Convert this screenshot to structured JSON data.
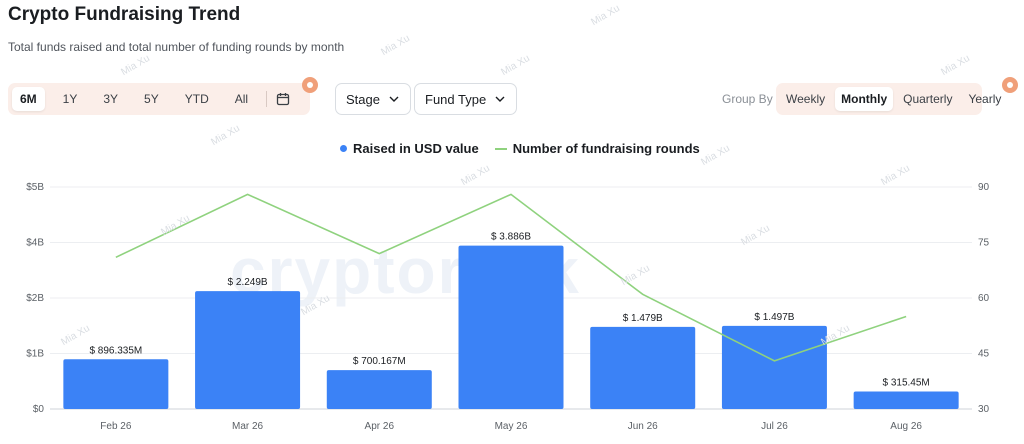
{
  "header": {
    "title": "Crypto Fundraising Trend",
    "subtitle": "Total funds raised and total number of funding rounds by month"
  },
  "range": {
    "options": [
      "6M",
      "1Y",
      "3Y",
      "5Y",
      "YTD",
      "All"
    ],
    "active": "6M",
    "calendar_icon": "calendar-icon"
  },
  "filters": {
    "stage_label": "Stage",
    "fund_type_label": "Fund Type"
  },
  "group_by": {
    "label": "Group By",
    "options": [
      "Weekly",
      "Monthly",
      "Quarterly",
      "Yearly"
    ],
    "active": "Monthly"
  },
  "watermark": {
    "big_text": "cryptorank",
    "small_text": "Mia Xu"
  },
  "colors": {
    "bar": "#3b82f6",
    "line": "#8fd27e",
    "accent_badge": "#f0a07a"
  },
  "chart_data": {
    "type": "bar",
    "categories": [
      "Feb 26",
      "Mar 26",
      "Apr 26",
      "May 26",
      "Jun 26",
      "Jul 26",
      "Aug 26"
    ],
    "series": [
      {
        "name": "Raised in USD value",
        "type": "bar",
        "values": [
          896335000,
          2249000000,
          700167000,
          3886000000,
          1479000000,
          1497000000,
          315450000
        ],
        "labels": [
          "$ 896.335M",
          "$ 2.249B",
          "$ 700.167M",
          "$ 3.886B",
          "$ 1.479B",
          "$ 1.497B",
          "$ 315.45M"
        ]
      },
      {
        "name": "Number of fundraising rounds",
        "type": "line",
        "values": [
          71,
          88,
          72,
          88,
          61,
          43,
          55
        ]
      }
    ],
    "y_left": {
      "ticks": [
        "$0",
        "$1B",
        "$2B",
        "$4B",
        "$5B"
      ],
      "tick_values": [
        0,
        1,
        2,
        4,
        5
      ],
      "ylim": [
        0,
        4
      ]
    },
    "y_right": {
      "ticks": [
        "30",
        "45",
        "60",
        "75",
        "90"
      ],
      "ylim": [
        30,
        90
      ]
    },
    "grid": true,
    "legend": "top-center"
  }
}
